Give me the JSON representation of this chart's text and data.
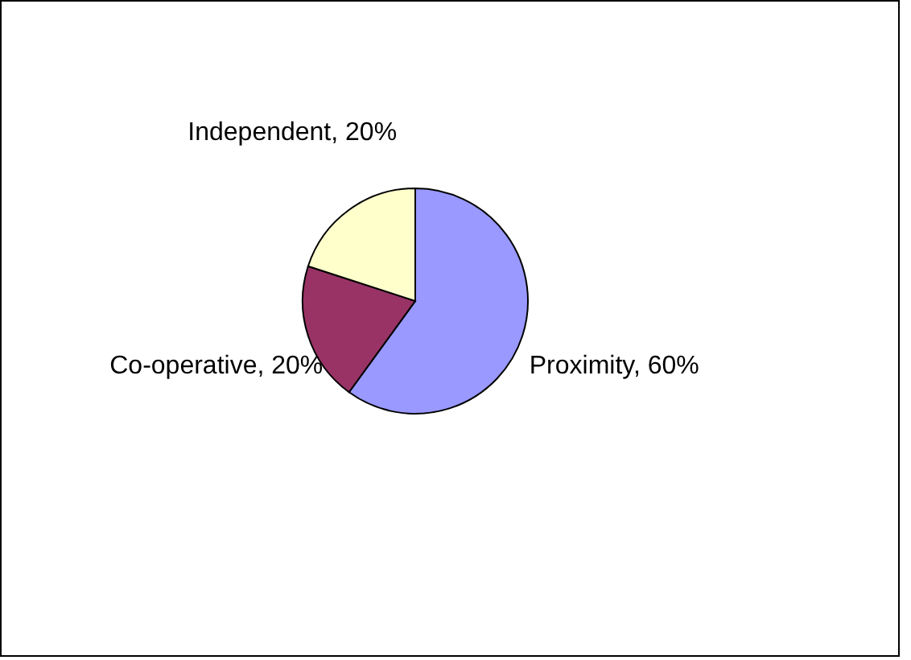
{
  "chart_data": {
    "type": "pie",
    "categories": [
      "Proximity",
      "Co-operative",
      "Independent"
    ],
    "values": [
      60,
      20,
      20
    ],
    "colors": [
      "#9999ff",
      "#993366",
      "#ffffcc"
    ],
    "value_labels": [
      "60%",
      "20%",
      "20%"
    ]
  }
}
